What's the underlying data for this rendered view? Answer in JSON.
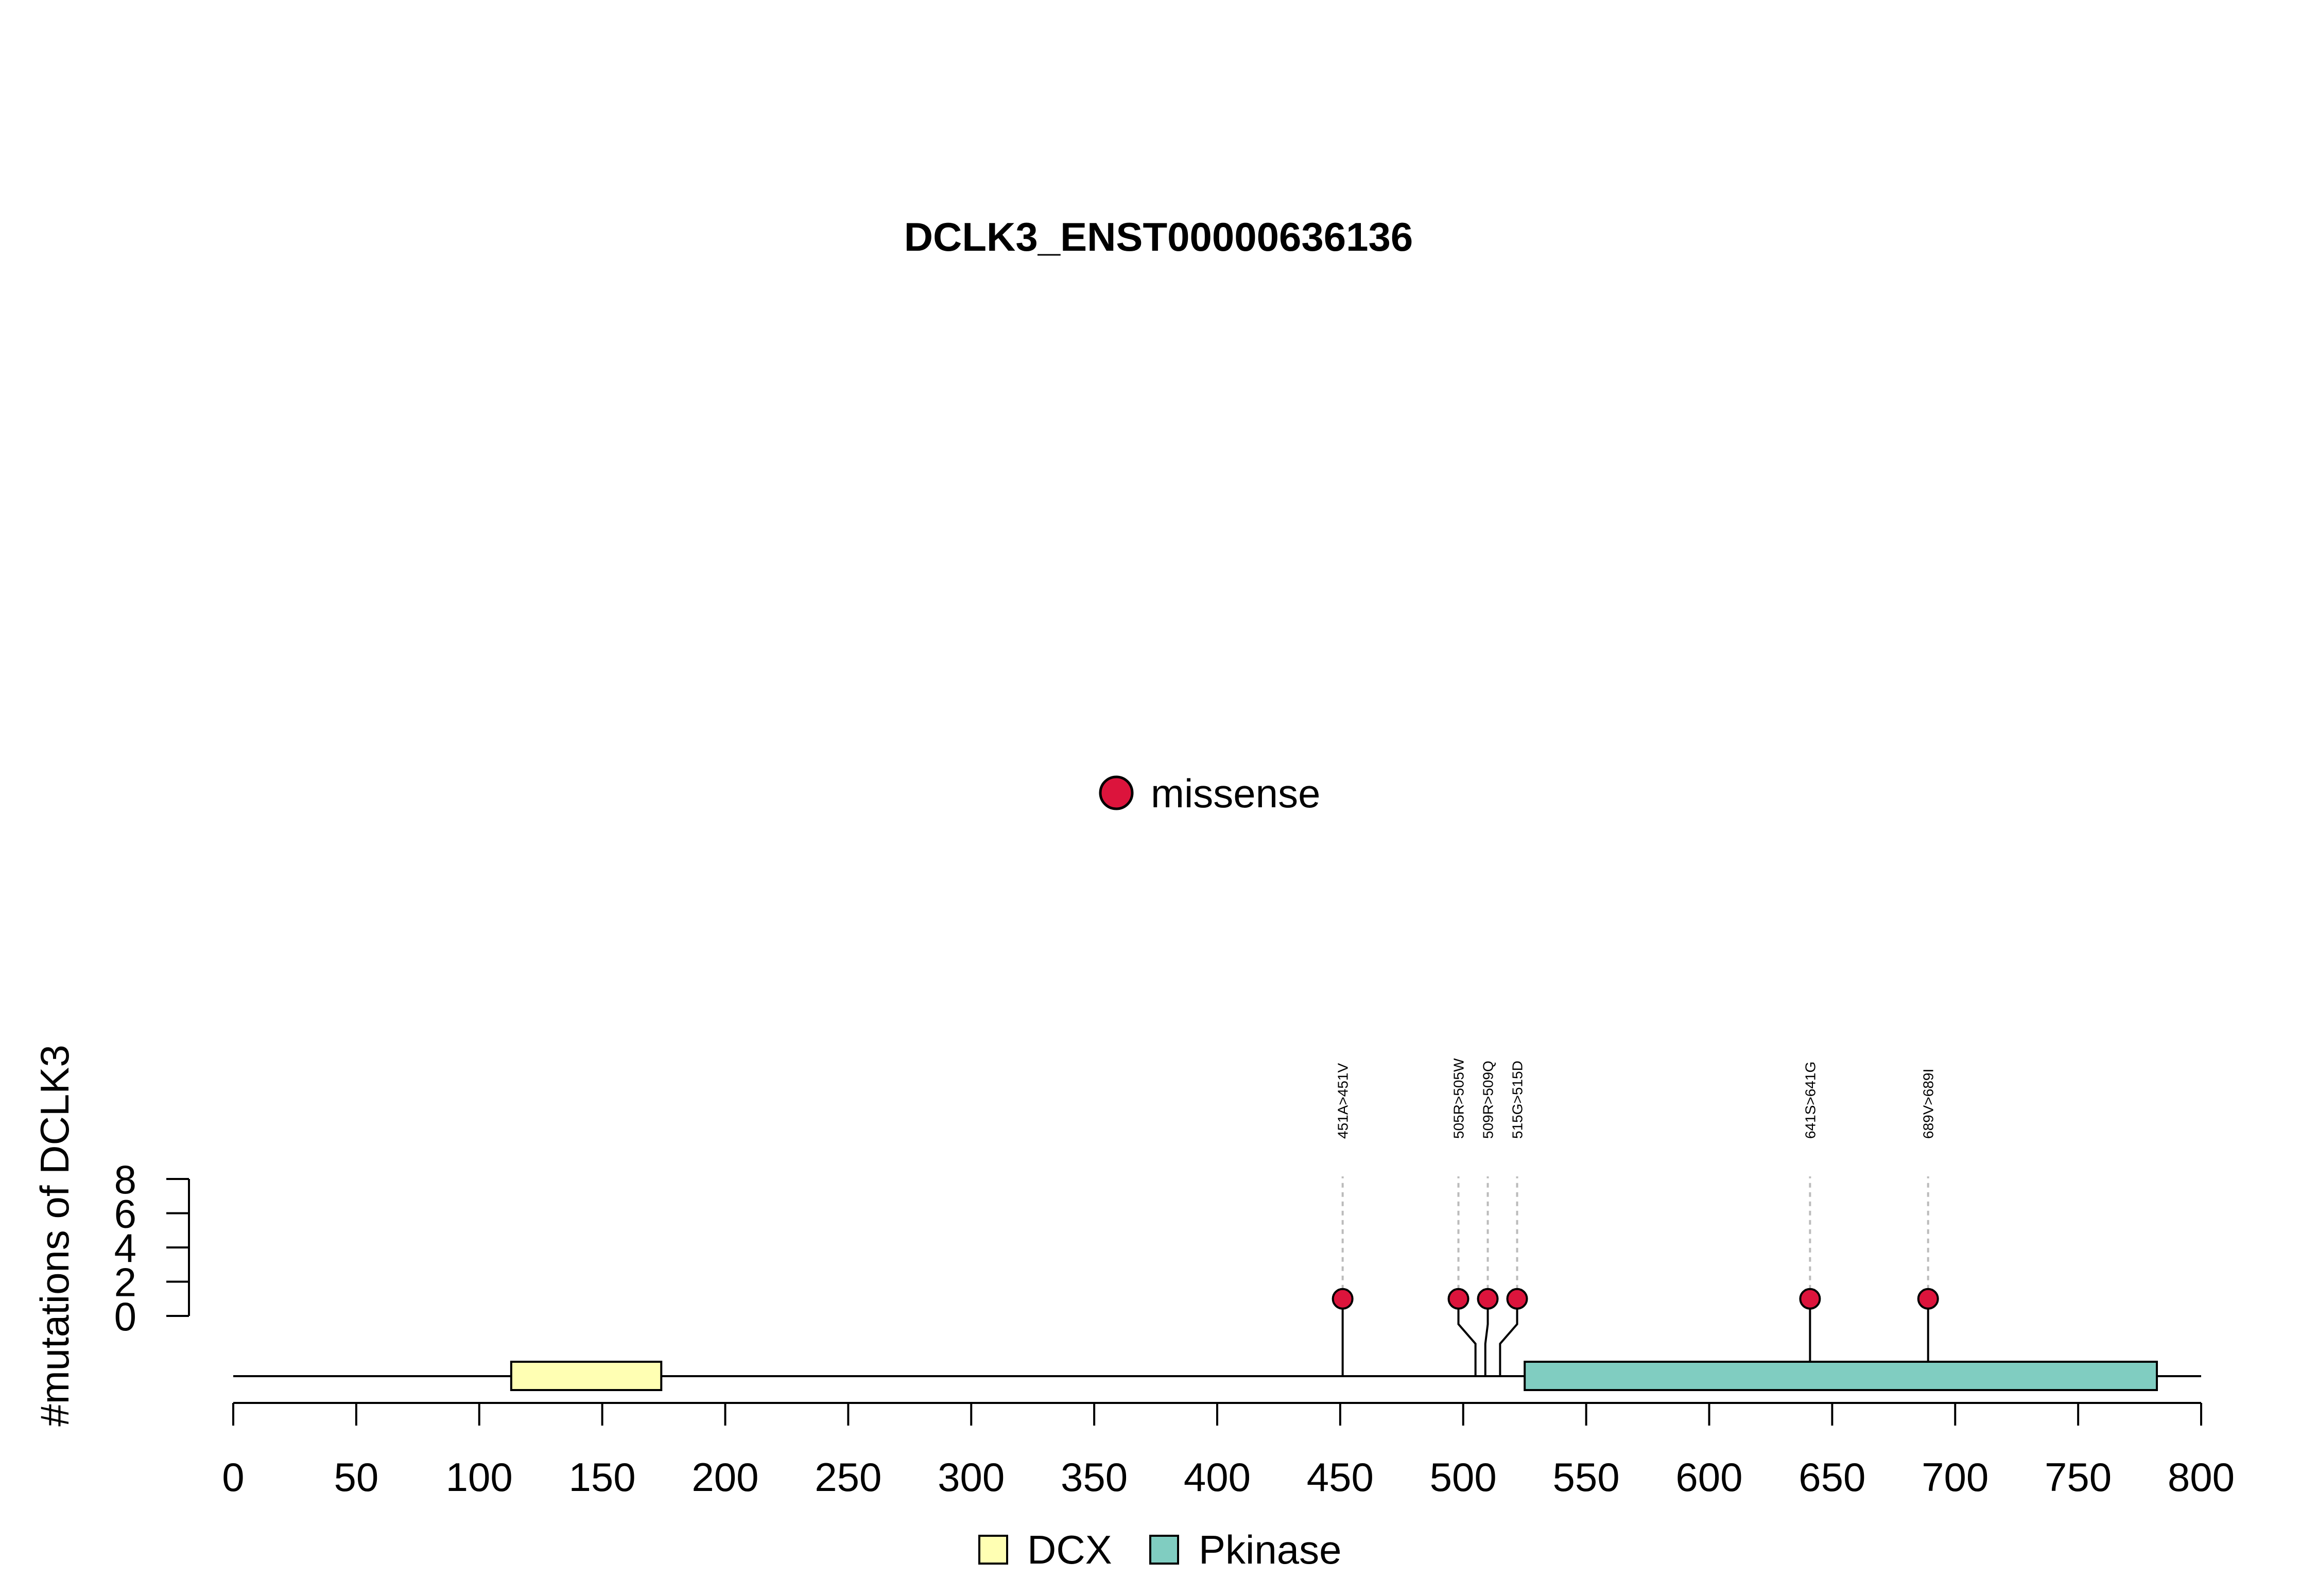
{
  "chart_data": {
    "type": "lollipop",
    "title": "DCLK3_ENST00000636136",
    "ylabel": "#mutations of DCLK3",
    "xlim": [
      0,
      800
    ],
    "xticks": [
      0,
      50,
      100,
      150,
      200,
      250,
      300,
      350,
      400,
      450,
      500,
      550,
      600,
      650,
      700,
      750,
      800
    ],
    "yticks": [
      0,
      2,
      4,
      6,
      8
    ],
    "ylim": [
      0,
      8
    ],
    "protein_length": 800,
    "mutation_legend": [
      {
        "label": "missense",
        "color": "#DC143C"
      }
    ],
    "mutations": [
      {
        "label": "451A>451V",
        "position": 451,
        "count": 1,
        "type": "missense",
        "color": "#DC143C"
      },
      {
        "label": "505R>505W",
        "position": 505,
        "count": 1,
        "type": "missense",
        "color": "#DC143C"
      },
      {
        "label": "509R>509Q",
        "position": 509,
        "count": 1,
        "type": "missense",
        "color": "#DC143C"
      },
      {
        "label": "515G>515D",
        "position": 515,
        "count": 1,
        "type": "missense",
        "color": "#DC143C"
      },
      {
        "label": "641S>641G",
        "position": 641,
        "count": 1,
        "type": "missense",
        "color": "#DC143C"
      },
      {
        "label": "689V>689I",
        "position": 689,
        "count": 1,
        "type": "missense",
        "color": "#DC143C"
      }
    ],
    "domains": [
      {
        "name": "DCX",
        "start": 113,
        "end": 174,
        "color": "#FFFFB3"
      },
      {
        "name": "Pkinase",
        "start": 525,
        "end": 782,
        "color": "#80CDC1"
      }
    ]
  }
}
